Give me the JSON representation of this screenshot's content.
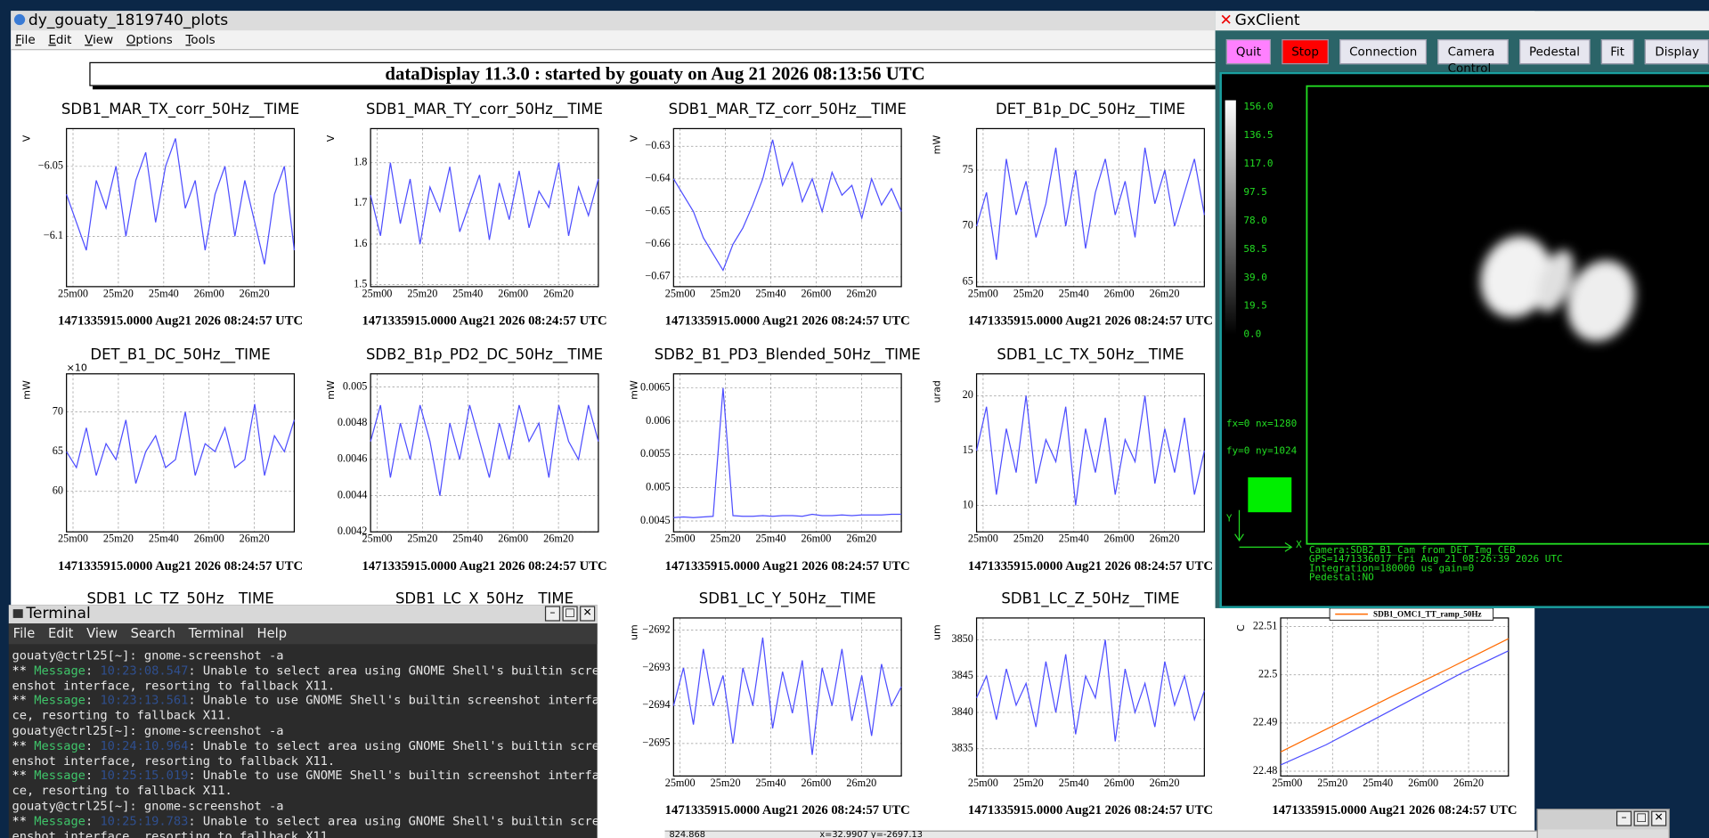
{
  "plots_window": {
    "title": "dy_gouaty_1819740_plots",
    "menu": [
      "File",
      "Edit",
      "View",
      "Options",
      "Tools"
    ],
    "banner": "dataDisplay 11.3.0 : started by gouaty on Aug 21 2026 08:13:56 UTC",
    "footer": "1471335915.0000 Aug21 2026 08:24:57 UTC",
    "time_ticks": [
      "25m00",
      "25m20",
      "25m40",
      "26m00",
      "26m20"
    ],
    "trace_color": "#4d4dff",
    "hidden_titles": [
      "SDB1_LC_TZ_50Hz__TIME",
      "SDB1_LC_X_50Hz__TIME"
    ],
    "status": [
      "824.868",
      "x=32.9907 y=-2697.13"
    ]
  },
  "plots": [
    {
      "title": "SDB1_MAR_TX_corr_50Hz__TIME",
      "unit": "V",
      "ylim": [
        -6.136,
        -6.023
      ],
      "yticks": [
        {
          "value": -6.05,
          "label": "−6.05"
        },
        {
          "value": -6.1,
          "label": "−6.1"
        }
      ],
      "values": [
        -6.07,
        -6.09,
        -6.11,
        -6.06,
        -6.08,
        -6.05,
        -6.1,
        -6.06,
        -6.04,
        -6.09,
        -6.05,
        -6.03,
        -6.08,
        -6.06,
        -6.11,
        -6.07,
        -6.05,
        -6.1,
        -6.06,
        -6.09,
        -6.12,
        -6.07,
        -6.05,
        -6.11
      ]
    },
    {
      "title": "SDB1_MAR_TY_corr_50Hz__TIME",
      "unit": "V",
      "ylim": [
        1.495,
        1.884
      ],
      "yticks": [
        1.8,
        1.7,
        1.6,
        1.5
      ],
      "values": [
        1.72,
        1.62,
        1.8,
        1.65,
        1.76,
        1.6,
        1.74,
        1.68,
        1.79,
        1.63,
        1.7,
        1.77,
        1.61,
        1.75,
        1.66,
        1.78,
        1.64,
        1.73,
        1.69,
        1.8,
        1.62,
        1.74,
        1.67,
        1.76
      ]
    },
    {
      "title": "SDB1_MAR_TZ_corr_50Hz__TIME",
      "unit": "V",
      "ylim": [
        -0.673,
        -0.6246
      ],
      "yticks": [
        {
          "value": -0.63,
          "label": "−0.63"
        },
        {
          "value": -0.64,
          "label": "−0.64"
        },
        {
          "value": -0.65,
          "label": "−0.65"
        },
        {
          "value": -0.66,
          "label": "−0.66"
        },
        {
          "value": -0.67,
          "label": "−0.67"
        }
      ],
      "values": [
        -0.64,
        -0.645,
        -0.65,
        -0.658,
        -0.663,
        -0.668,
        -0.66,
        -0.655,
        -0.648,
        -0.64,
        -0.628,
        -0.642,
        -0.635,
        -0.647,
        -0.64,
        -0.65,
        -0.638,
        -0.645,
        -0.642,
        -0.652,
        -0.64,
        -0.648,
        -0.643,
        -0.65
      ]
    },
    {
      "title": "DET_B1p_DC_50Hz__TIME",
      "unit": "mW",
      "ylim": [
        64.6,
        78.7
      ],
      "yticks": [
        75,
        70,
        65
      ],
      "values": [
        70,
        73,
        67,
        76,
        71,
        74,
        69,
        72,
        77,
        70,
        75,
        68,
        73,
        76,
        71,
        74,
        69,
        77,
        72,
        75,
        70,
        73,
        76,
        71
      ]
    },
    {
      "title": "DET_B1_DC_50Hz__TIME",
      "unit": "mW",
      "exponent": "×10",
      "ylim": [
        54.9,
        74.8
      ],
      "yticks": [
        70,
        65,
        60
      ],
      "values": [
        65,
        63,
        68,
        62,
        66,
        64,
        69,
        61,
        65,
        67,
        63,
        64,
        70,
        62,
        66,
        65,
        68,
        63,
        64,
        71,
        62,
        67,
        65,
        69
      ]
    },
    {
      "title": "SDB2_B1p_PD2_DC_50Hz__TIME",
      "unit": "mW",
      "ylim": [
        0.0042,
        0.005073
      ],
      "yticks": [
        0.005,
        0.0048,
        0.0046,
        0.0044,
        0.0042
      ],
      "values": [
        0.0047,
        0.0049,
        0.0045,
        0.0048,
        0.0046,
        0.0049,
        0.0047,
        0.0044,
        0.0048,
        0.0046,
        0.0049,
        0.0047,
        0.0045,
        0.0048,
        0.0046,
        0.0049,
        0.0047,
        0.0048,
        0.0045,
        0.0049,
        0.0047,
        0.0046,
        0.0049,
        0.0047
      ]
    },
    {
      "title": "SDB2_B1_PD3_Blended_50Hz__TIME",
      "unit": "mW",
      "ylim": [
        0.004336,
        0.006713
      ],
      "yticks": [
        0.0065,
        0.006,
        0.0055,
        0.005,
        0.0045
      ],
      "values": [
        0.00455,
        0.00456,
        0.00455,
        0.00456,
        0.00457,
        0.0065,
        0.00458,
        0.00457,
        0.00457,
        0.00458,
        0.00457,
        0.00458,
        0.00458,
        0.00457,
        0.0046,
        0.00458,
        0.00458,
        0.00459,
        0.00458,
        0.00459,
        0.00459,
        0.00459,
        0.0046,
        0.0046
      ]
    },
    {
      "title": "SDB1_LC_TX_50Hz__TIME",
      "unit": "urad",
      "ylim": [
        7.6,
        22
      ],
      "yticks": [
        20,
        15,
        10
      ],
      "values": [
        15,
        19,
        11,
        17,
        13,
        20,
        12,
        16,
        14,
        19,
        10,
        17,
        13,
        18,
        11,
        16,
        14,
        20,
        12,
        17,
        13,
        18,
        11,
        15
      ]
    },
    {
      "title": "SDB1_LC_Y_50Hz__TIME",
      "unit": "um",
      "ylim": [
        -2695.86,
        -2691.68
      ],
      "yticks": [
        {
          "value": -2692,
          "label": "−2692"
        },
        {
          "value": -2693,
          "label": "−2693"
        },
        {
          "value": -2694,
          "label": "−2694"
        },
        {
          "value": -2695,
          "label": "−2695"
        }
      ],
      "values": [
        -2694,
        -2693,
        -2694.5,
        -2692.5,
        -2694,
        -2693.2,
        -2695,
        -2693,
        -2694,
        -2692.2,
        -2694.6,
        -2693.1,
        -2694.2,
        -2692.8,
        -2695.3,
        -2693,
        -2694,
        -2692.5,
        -2694.4,
        -2693.2,
        -2694.8,
        -2692.9,
        -2694,
        -2693.5
      ]
    },
    {
      "title": "SDB1_LC_Z_50Hz__TIME",
      "unit": "um",
      "ylim": [
        3831.25,
        3853
      ],
      "yticks": [
        3850,
        3845,
        3840,
        3835
      ],
      "values": [
        3842,
        3845,
        3839,
        3846,
        3841,
        3844,
        3838,
        3847,
        3840,
        3848,
        3837,
        3845,
        3842,
        3850,
        3836,
        3846,
        3840,
        3844,
        3838,
        3847,
        3841,
        3845,
        3839,
        3843
      ]
    },
    {
      "unit": "C",
      "ylim": [
        22.479,
        22.5118
      ],
      "yticks": [
        22.51,
        22.5,
        22.49,
        22.48
      ],
      "series": [
        {
          "name": "SDB1_OMC1_TT_ramp_50Hz",
          "color": "#ff6a00",
          "values": [
            22.484,
            22.4899,
            22.4958,
            22.5016,
            22.5075
          ]
        },
        {
          "color": "#4d4dff",
          "values": [
            22.4813,
            22.4855,
            22.4905,
            22.4955,
            22.5005,
            22.505
          ]
        }
      ]
    }
  ],
  "gxclient": {
    "title": "GxClient",
    "buttons": [
      "Quit",
      "Stop",
      "Connection",
      "Camera Control",
      "Pedestal",
      "Fit",
      "Display"
    ],
    "colorbar": [
      {
        "value": 156,
        "label": "156.0"
      },
      {
        "value": 136.5,
        "label": "136.5"
      },
      {
        "value": 117,
        "label": "117.0"
      },
      {
        "value": 97.5,
        "label": "97.5"
      },
      {
        "value": 78,
        "label": "78.0"
      },
      {
        "value": 58.5,
        "label": "58.5"
      },
      {
        "value": 39,
        "label": "39.0"
      },
      {
        "value": 19.5,
        "label": "19.5"
      },
      {
        "value": 0,
        "label": "0.0"
      }
    ],
    "fx_label": "fx=0 nx=1280",
    "fy_label": "fy=0 ny=1024",
    "axis_y": "Y",
    "axis_x": "X",
    "info": [
      "Camera:SDB2_B1_Cam from DET_Img_CEB",
      "GPS=1471336017 Fri Aug 21 08:26:39 2026  UTC",
      "Integration=180000 us gain=0",
      "Pedestal:NO"
    ]
  },
  "terminal": {
    "title": "Terminal",
    "menu": [
      "File",
      "Edit",
      "View",
      "Search",
      "Terminal",
      "Help"
    ],
    "lines": [
      {
        "text": "gouaty@ctrl25[~]: gnome-screenshot -a"
      },
      {
        "stars": "**",
        "tag": "Message",
        "time": "10:23:08.547",
        "text": ": Unable to select area using GNOME Shell's builtin scre"
      },
      {
        "text": "enshot interface, resorting to fallback X11."
      },
      {
        "stars": "**",
        "tag": "Message",
        "time": "10:23:13.561",
        "text": ": Unable to use GNOME Shell's builtin screenshot interfa"
      },
      {
        "text": "ce, resorting to fallback X11."
      },
      {
        "text": "gouaty@ctrl25[~]: gnome-screenshot -a"
      },
      {
        "stars": "**",
        "tag": "Message",
        "time": "10:24:10.964",
        "text": ": Unable to select area using GNOME Shell's builtin scre"
      },
      {
        "text": "enshot interface, resorting to fallback X11."
      },
      {
        "stars": "**",
        "tag": "Message",
        "time": "10:25:15.019",
        "text": ": Unable to use GNOME Shell's builtin screenshot interfa"
      },
      {
        "text": "ce, resorting to fallback X11."
      },
      {
        "text": "gouaty@ctrl25[~]: gnome-screenshot -a"
      },
      {
        "stars": "**",
        "tag": "Message",
        "time": "10:25:19.783",
        "text": ": Unable to select area using GNOME Shell's builtin scre"
      },
      {
        "text": "enshot interface, resorting to fallback X11."
      }
    ]
  }
}
